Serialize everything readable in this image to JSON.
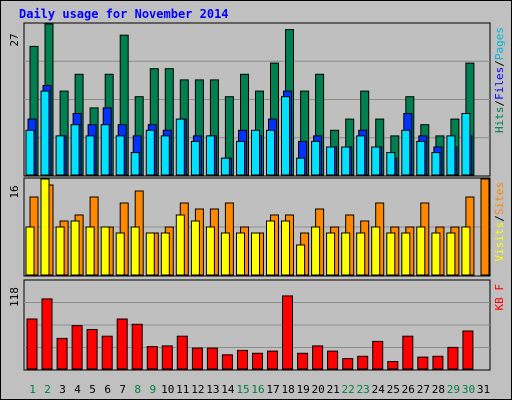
{
  "title": "Daily usage for November 2014",
  "colors": {
    "background": "#c0c0c0",
    "plot": "#bfbfbf",
    "pages": "#00e0ff",
    "files": "#0033ff",
    "hits": "#007f50",
    "visits": "#ffff00",
    "sites": "#ff8800",
    "kbytes": "#ff0000",
    "weekend": "#008040",
    "weekday": "#000000",
    "title": "#0000ff"
  },
  "chart_data": [
    {
      "type": "bar",
      "name": "pages-files-hits",
      "ymax_label": "27",
      "ylim": [
        0,
        27
      ],
      "legend": [
        {
          "label": "Pages",
          "color": "#00b8d8"
        },
        {
          "label": "Files",
          "color": "#0000ff"
        },
        {
          "label": "Hits",
          "color": "#007f50"
        }
      ],
      "separator": "/",
      "series": [
        {
          "name": "Hits",
          "values": [
            23,
            27,
            15,
            18,
            12,
            18,
            25,
            14,
            19,
            19,
            17,
            17,
            17,
            14,
            18,
            15,
            20,
            26,
            15,
            18,
            8,
            10,
            15,
            10,
            7,
            14,
            9,
            7,
            10,
            20,
            0
          ]
        },
        {
          "name": "Files",
          "values": [
            10,
            16,
            7,
            11,
            9,
            12,
            9,
            7,
            9,
            8,
            10,
            7,
            7,
            3,
            8,
            7,
            10,
            15,
            6,
            7,
            5,
            5,
            8,
            5,
            3,
            11,
            7,
            5,
            5,
            7,
            0
          ]
        },
        {
          "name": "Pages",
          "values": [
            8,
            15,
            7,
            9,
            7,
            9,
            7,
            4,
            8,
            7,
            10,
            6,
            7,
            3,
            6,
            8,
            8,
            14,
            3,
            6,
            5,
            5,
            7,
            5,
            4,
            8,
            6,
            4,
            7,
            11,
            0
          ]
        }
      ]
    },
    {
      "type": "bar",
      "name": "visits-sites",
      "ymax_label": "16",
      "ylim": [
        0,
        16
      ],
      "legend": [
        {
          "label": "Sites",
          "color": "#ff8800"
        },
        {
          "label": "Visits",
          "color": "#ffff00"
        }
      ],
      "separator": "/",
      "series": [
        {
          "name": "Sites",
          "values": [
            13,
            15,
            9,
            10,
            13,
            8,
            12,
            14,
            7,
            8,
            12,
            11,
            11,
            12,
            8,
            7,
            10,
            10,
            7,
            11,
            8,
            10,
            9,
            12,
            8,
            8,
            12,
            8,
            8,
            13,
            16
          ]
        },
        {
          "name": "Visits",
          "values": [
            8,
            16,
            8,
            9,
            8,
            8,
            7,
            8,
            7,
            7,
            10,
            9,
            8,
            7,
            7,
            7,
            9,
            9,
            5,
            8,
            7,
            7,
            7,
            8,
            7,
            7,
            8,
            7,
            7,
            8,
            0
          ]
        }
      ]
    },
    {
      "type": "bar",
      "name": "kbytes",
      "ymax_label": "118",
      "ylim": [
        0,
        118
      ],
      "legend": [
        {
          "label": "KB F",
          "color": "#ff0000"
        }
      ],
      "separator": "",
      "series": [
        {
          "name": "KB F",
          "values": [
            67,
            94,
            41,
            58,
            53,
            44,
            67,
            60,
            30,
            31,
            44,
            28,
            28,
            19,
            25,
            21,
            24,
            98,
            21,
            31,
            24,
            14,
            17,
            37,
            10,
            44,
            16,
            17,
            29,
            51,
            0
          ]
        }
      ]
    }
  ],
  "days": [
    "1",
    "2",
    "3",
    "4",
    "5",
    "6",
    "7",
    "8",
    "9",
    "10",
    "11",
    "12",
    "13",
    "14",
    "15",
    "16",
    "17",
    "18",
    "19",
    "20",
    "21",
    "22",
    "23",
    "24",
    "25",
    "26",
    "27",
    "28",
    "29",
    "30",
    "31"
  ],
  "weekend_days": [
    "1",
    "2",
    "8",
    "9",
    "15",
    "16",
    "22",
    "23",
    "29",
    "30"
  ]
}
